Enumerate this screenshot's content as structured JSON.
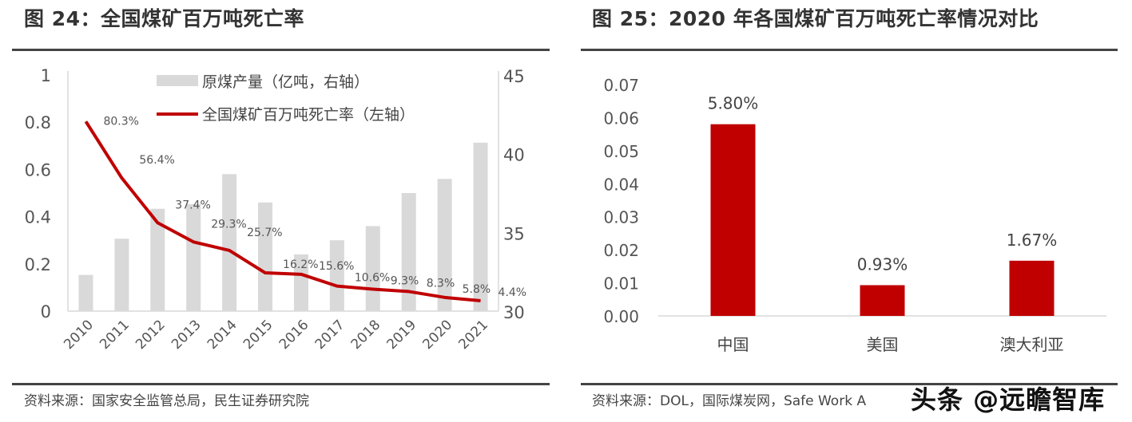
{
  "left": {
    "title": "图 24：全国煤矿百万吨死亡率",
    "source": "资料来源：国家安全监管总局，民生证券研究院"
  },
  "right": {
    "title": "图 25：2020 年各国煤矿百万吨死亡率情况对比",
    "source": "资料来源：DOL，国际煤炭网，Safe Work A"
  },
  "watermark": "头条 @远瞻智库",
  "chart_data": [
    {
      "type": "bar+line",
      "categories": [
        "2010",
        "2011",
        "2012",
        "2013",
        "2014",
        "2015",
        "2016",
        "2017",
        "2018",
        "2019",
        "2020",
        "2021"
      ],
      "series": [
        {
          "name": "原煤产量（亿吨，右轴）",
          "type": "bar",
          "axis": "right",
          "color": "#d9d9d9",
          "values": [
            32.3,
            34.6,
            36.5,
            36.8,
            38.7,
            36.9,
            33.6,
            34.5,
            35.4,
            37.5,
            38.4,
            40.7
          ]
        },
        {
          "name": "全国煤矿百万吨死亡率（左轴）",
          "type": "line",
          "axis": "left",
          "color": "#c00000",
          "values": [
            0.803,
            0.564,
            0.374,
            0.293,
            0.257,
            0.162,
            0.156,
            0.106,
            0.093,
            0.083,
            0.058,
            0.044
          ],
          "labels": [
            "80.3%",
            "56.4%",
            "37.4%",
            "29.3%",
            "25.7%",
            "16.2%",
            "15.6%",
            "10.6%",
            "9.3%",
            "8.3%",
            "5.8%",
            "4.4%"
          ]
        }
      ],
      "y_left": {
        "lim": [
          0,
          1
        ],
        "ticks": [
          "0",
          "0.2",
          "0.4",
          "0.6",
          "0.8",
          "1"
        ]
      },
      "y_right": {
        "lim": [
          30,
          45
        ],
        "ticks": [
          "30",
          "35",
          "40",
          "45"
        ]
      },
      "legend": "top",
      "grid": false
    },
    {
      "type": "bar",
      "categories": [
        "中国",
        "美国",
        "澳大利亚"
      ],
      "values": [
        0.058,
        0.0093,
        0.0167
      ],
      "labels": [
        "5.80%",
        "0.93%",
        "1.67%"
      ],
      "color": "#c00000",
      "ylim": [
        0,
        0.07
      ],
      "ticks": [
        "0.00",
        "0.01",
        "0.02",
        "0.03",
        "0.04",
        "0.05",
        "0.06",
        "0.07"
      ],
      "grid": false
    }
  ]
}
